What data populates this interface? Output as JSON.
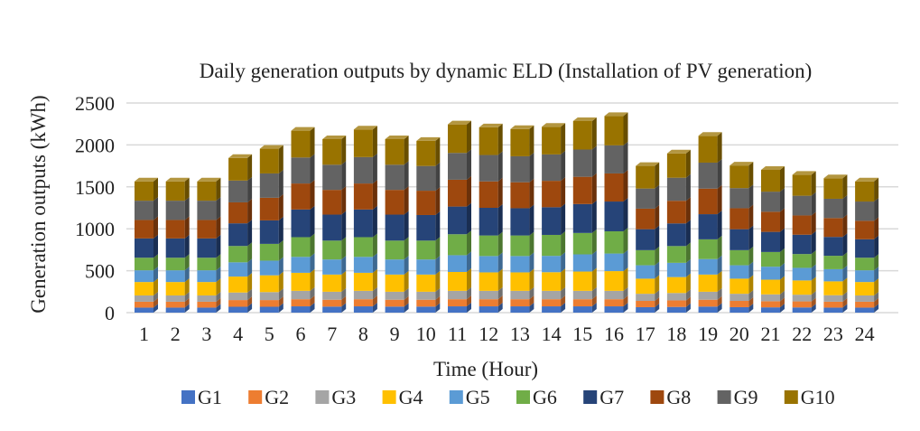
{
  "chart_data": {
    "type": "bar",
    "stacked": true,
    "style": "3d-columns",
    "title": "Daily generation outputs by dynamic ELD (Installation of PV generation)",
    "xlabel": "Time (Hour)",
    "ylabel": "Generation outputs (kWh)",
    "ylim": [
      0,
      2500
    ],
    "yticks": [
      0,
      500,
      1000,
      1500,
      2000,
      2500
    ],
    "grid": true,
    "legend_position": "bottom",
    "categories": [
      "1",
      "2",
      "3",
      "4",
      "5",
      "6",
      "7",
      "8",
      "9",
      "10",
      "11",
      "12",
      "13",
      "14",
      "15",
      "16",
      "17",
      "18",
      "19",
      "20",
      "21",
      "22",
      "23",
      "24"
    ],
    "series": [
      {
        "name": "G1",
        "color": "#4472c4",
        "values": [
          60,
          60,
          60,
          70,
          70,
          75,
          72,
          75,
          72,
          72,
          75,
          75,
          75,
          75,
          75,
          75,
          65,
          68,
          72,
          65,
          63,
          62,
          60,
          60
        ]
      },
      {
        "name": "G2",
        "color": "#ed7d31",
        "values": [
          70,
          70,
          70,
          80,
          80,
          85,
          82,
          85,
          82,
          82,
          85,
          85,
          85,
          85,
          85,
          85,
          75,
          78,
          82,
          75,
          73,
          72,
          70,
          70
        ]
      },
      {
        "name": "G3",
        "color": "#a5a5a5",
        "values": [
          75,
          75,
          75,
          90,
          95,
          100,
          95,
          100,
          95,
          95,
          100,
          100,
          100,
          100,
          100,
          100,
          85,
          88,
          95,
          85,
          82,
          80,
          78,
          75
        ]
      },
      {
        "name": "G4",
        "color": "#ffc000",
        "values": [
          160,
          160,
          160,
          190,
          200,
          215,
          205,
          215,
          205,
          205,
          225,
          220,
          220,
          222,
          230,
          235,
          180,
          190,
          205,
          180,
          175,
          170,
          165,
          160
        ]
      },
      {
        "name": "G5",
        "color": "#5b9bd5",
        "values": [
          140,
          140,
          140,
          170,
          175,
          190,
          180,
          190,
          180,
          180,
          200,
          195,
          195,
          195,
          205,
          210,
          160,
          170,
          185,
          160,
          155,
          150,
          145,
          140
        ]
      },
      {
        "name": "G6",
        "color": "#70ad47",
        "values": [
          150,
          150,
          150,
          195,
          200,
          235,
          225,
          235,
          225,
          225,
          250,
          245,
          245,
          250,
          255,
          265,
          180,
          200,
          235,
          180,
          175,
          165,
          160,
          150
        ]
      },
      {
        "name": "G7",
        "color": "#264478",
        "values": [
          230,
          230,
          230,
          270,
          280,
          330,
          310,
          330,
          310,
          305,
          330,
          330,
          325,
          330,
          345,
          355,
          250,
          270,
          300,
          250,
          240,
          230,
          225,
          220
        ]
      },
      {
        "name": "G8",
        "color": "#9e480e",
        "values": [
          220,
          220,
          220,
          250,
          270,
          310,
          295,
          310,
          295,
          290,
          320,
          315,
          310,
          315,
          325,
          335,
          245,
          270,
          305,
          250,
          240,
          230,
          225,
          220
        ]
      },
      {
        "name": "G9",
        "color": "#636363",
        "values": [
          230,
          230,
          230,
          260,
          290,
          310,
          300,
          315,
          300,
          295,
          320,
          315,
          310,
          315,
          325,
          335,
          240,
          275,
          310,
          240,
          240,
          235,
          230,
          230
        ]
      },
      {
        "name": "G10",
        "color": "#997300",
        "values": [
          230,
          230,
          230,
          270,
          295,
          320,
          305,
          330,
          305,
          300,
          340,
          330,
          325,
          330,
          340,
          350,
          270,
          290,
          320,
          270,
          260,
          250,
          245,
          240
        ]
      }
    ]
  }
}
